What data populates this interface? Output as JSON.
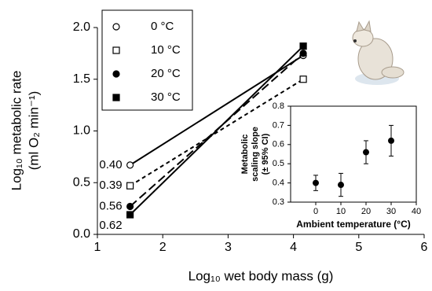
{
  "chart_data": [
    {
      "type": "line",
      "xlabel": "Log₁₀ wet body mass (g)",
      "ylabel": [
        "Log₁₀ metabolic rate",
        "(ml O₂ min⁻¹)"
      ],
      "xlim": [
        1,
        6
      ],
      "xticks": [
        1,
        2,
        3,
        4,
        5,
        6
      ],
      "ylim": [
        0,
        2.0
      ],
      "yticks": [
        {
          "value": 0,
          "label": "0.0"
        },
        0.5,
        {
          "value": 1,
          "label": "1.0"
        },
        1.5,
        {
          "value": 2,
          "label": "2.0"
        }
      ],
      "legend": "top-left",
      "series": [
        {
          "name": "0 °C",
          "color": "#000000",
          "marker": "circle",
          "filled": false,
          "linestyle": "solid",
          "x": [
            1.5,
            4.15
          ],
          "values": [
            0.67,
            1.73
          ]
        },
        {
          "name": "10 °C",
          "color": "#000000",
          "marker": "square",
          "filled": false,
          "linestyle": "dashed",
          "x": [
            1.5,
            4.15
          ],
          "values": [
            0.47,
            1.5
          ]
        },
        {
          "name": "20 °C",
          "color": "#000000",
          "marker": "circle",
          "filled": true,
          "linestyle": "long-dashed",
          "x": [
            1.5,
            4.15
          ],
          "values": [
            0.27,
            1.75
          ]
        },
        {
          "name": "30 °C",
          "color": "#000000",
          "marker": "square",
          "filled": true,
          "linestyle": "solid",
          "x": [
            1.5,
            4.15
          ],
          "values": [
            0.19,
            1.82
          ]
        }
      ],
      "annotations": [
        "0.40",
        "0.39",
        "0.56",
        "0.62"
      ]
    },
    {
      "type": "scatter",
      "xlabel": "Ambient temperature (°C)",
      "ylabel": [
        "Metabolic",
        "scaling slope",
        "(± 95% CI)"
      ],
      "xlim": [
        -10,
        40
      ],
      "xticks": [
        0,
        10,
        20,
        30,
        40
      ],
      "ylim": [
        0.3,
        0.8
      ],
      "yticks": [
        0.3,
        0.4,
        0.5,
        0.6,
        0.7,
        0.8
      ],
      "color": "#000000",
      "x": [
        0,
        10,
        20,
        30
      ],
      "values": [
        0.4,
        0.39,
        0.56,
        0.62
      ],
      "errors": [
        0.04,
        0.06,
        0.06,
        0.08
      ]
    }
  ]
}
